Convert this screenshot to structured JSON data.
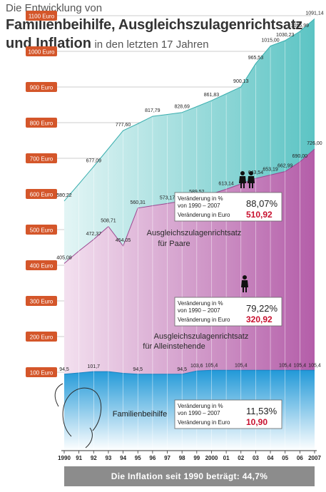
{
  "title": {
    "line1": "Die Entwicklung von",
    "line2": "Familienbeihilfe, Ausgleichszulagenrichtsatz",
    "line3_bold": "und Inflation",
    "line3_rest": "in den letzten 17 Jahren"
  },
  "colors": {
    "paare": "#5cc4c4",
    "allein": "#b45ea9",
    "familie": "#2299d8",
    "accent": "#c8102e",
    "axis_label_bg": "#d4562a"
  },
  "chart_data": {
    "type": "area",
    "x": [
      "1990",
      "91",
      "92",
      "93",
      "94",
      "95",
      "96",
      "97",
      "98",
      "99",
      "2000",
      "01",
      "02",
      "03",
      "04",
      "05",
      "06",
      "2007"
    ],
    "xlabel": "",
    "ylabel": "",
    "ylim": [
      70,
      1110
    ],
    "y_ticks": [
      100,
      200,
      300,
      400,
      500,
      600,
      700,
      800,
      900,
      1000,
      1100
    ],
    "y_tick_labels": [
      "100 Euro",
      "200 Euro",
      "300 Euro",
      "400 Euro",
      "500 Euro",
      "600 Euro",
      "700 Euro",
      "800 Euro",
      "900 Euro",
      "1000 Euro",
      "1100 Euro"
    ],
    "grid": true,
    "series": [
      {
        "name": "Ausgleichszulagenrichtsatz für Paare",
        "label_line1": "Ausgleichszulagenrichtsatz",
        "label_line2": "für Paare",
        "color": "#5cc4c4",
        "values": [
          580.22,
          628,
          677.09,
          727,
          777.6,
          797,
          817.79,
          823,
          828.69,
          845,
          861.83,
          881,
          900.13,
          965.53,
          1015.0,
          1030.23,
          1055.99,
          1091.14
        ],
        "value_labels": [
          "580,22",
          "",
          "677,09",
          "",
          "777,60",
          "",
          "817,79",
          "",
          "828,69",
          "",
          "861,83",
          "",
          "900,13",
          "965,53",
          "1015,00",
          "1030,23",
          "1055,99",
          "1091,14"
        ]
      },
      {
        "name": "Ausgleichszulagenrichtsatz für Alleinstehende",
        "label_line1": "Ausgleichszulagenrichtsatz",
        "label_line2": "für Alleinstehende",
        "color": "#b45ea9",
        "values": [
          405.08,
          440,
          472.37,
          508.71,
          454.05,
          560.31,
          567,
          573.17,
          580,
          589.52,
          600,
          613.14,
          628,
          643.54,
          653.19,
          662.99,
          690.0,
          726.0
        ],
        "value_labels": [
          "405,08",
          "",
          "472,37",
          "508,71",
          "454,05",
          "560,31",
          "",
          "573,17",
          "",
          "589,52",
          "",
          "613,14",
          "",
          "643,54",
          "653,19",
          "662,99",
          "690,00",
          "726,00"
        ]
      },
      {
        "name": "Familienbeihilfe",
        "color": "#2299d8",
        "values": [
          94.5,
          98,
          101.7,
          101.7,
          97,
          94.5,
          94.5,
          94.5,
          94.5,
          103.6,
          105.4,
          105.4,
          105.4,
          105.4,
          105.4,
          105.4,
          105.4,
          105.4
        ],
        "value_labels": [
          "94,5",
          "",
          "101,7",
          "",
          "",
          "94,5",
          "",
          "",
          "94,5",
          "103,6",
          "105,4",
          "",
          "105,4",
          "",
          "",
          "105,4",
          "105,4",
          "105,4"
        ]
      }
    ]
  },
  "boxes": [
    {
      "name": "paare",
      "label1": "Veränderung in %",
      "label2": "von 1990 – 2007",
      "label3": "Veränderung in Euro",
      "pct": "88,07%",
      "euro": "510,92"
    },
    {
      "name": "allein",
      "label1": "Veränderung in %",
      "label2": "von 1990 – 2007",
      "label3": "Veränderung in Euro",
      "pct": "79,22%",
      "euro": "320,92"
    },
    {
      "name": "familie",
      "label1": "Veränderung in %",
      "label2": "von 1990 – 2007",
      "label3": "Veränderung in Euro",
      "pct": "11,53%",
      "euro": "10,90"
    }
  ],
  "footer": "Die Inflation seit 1990 beträgt: 44,7%"
}
